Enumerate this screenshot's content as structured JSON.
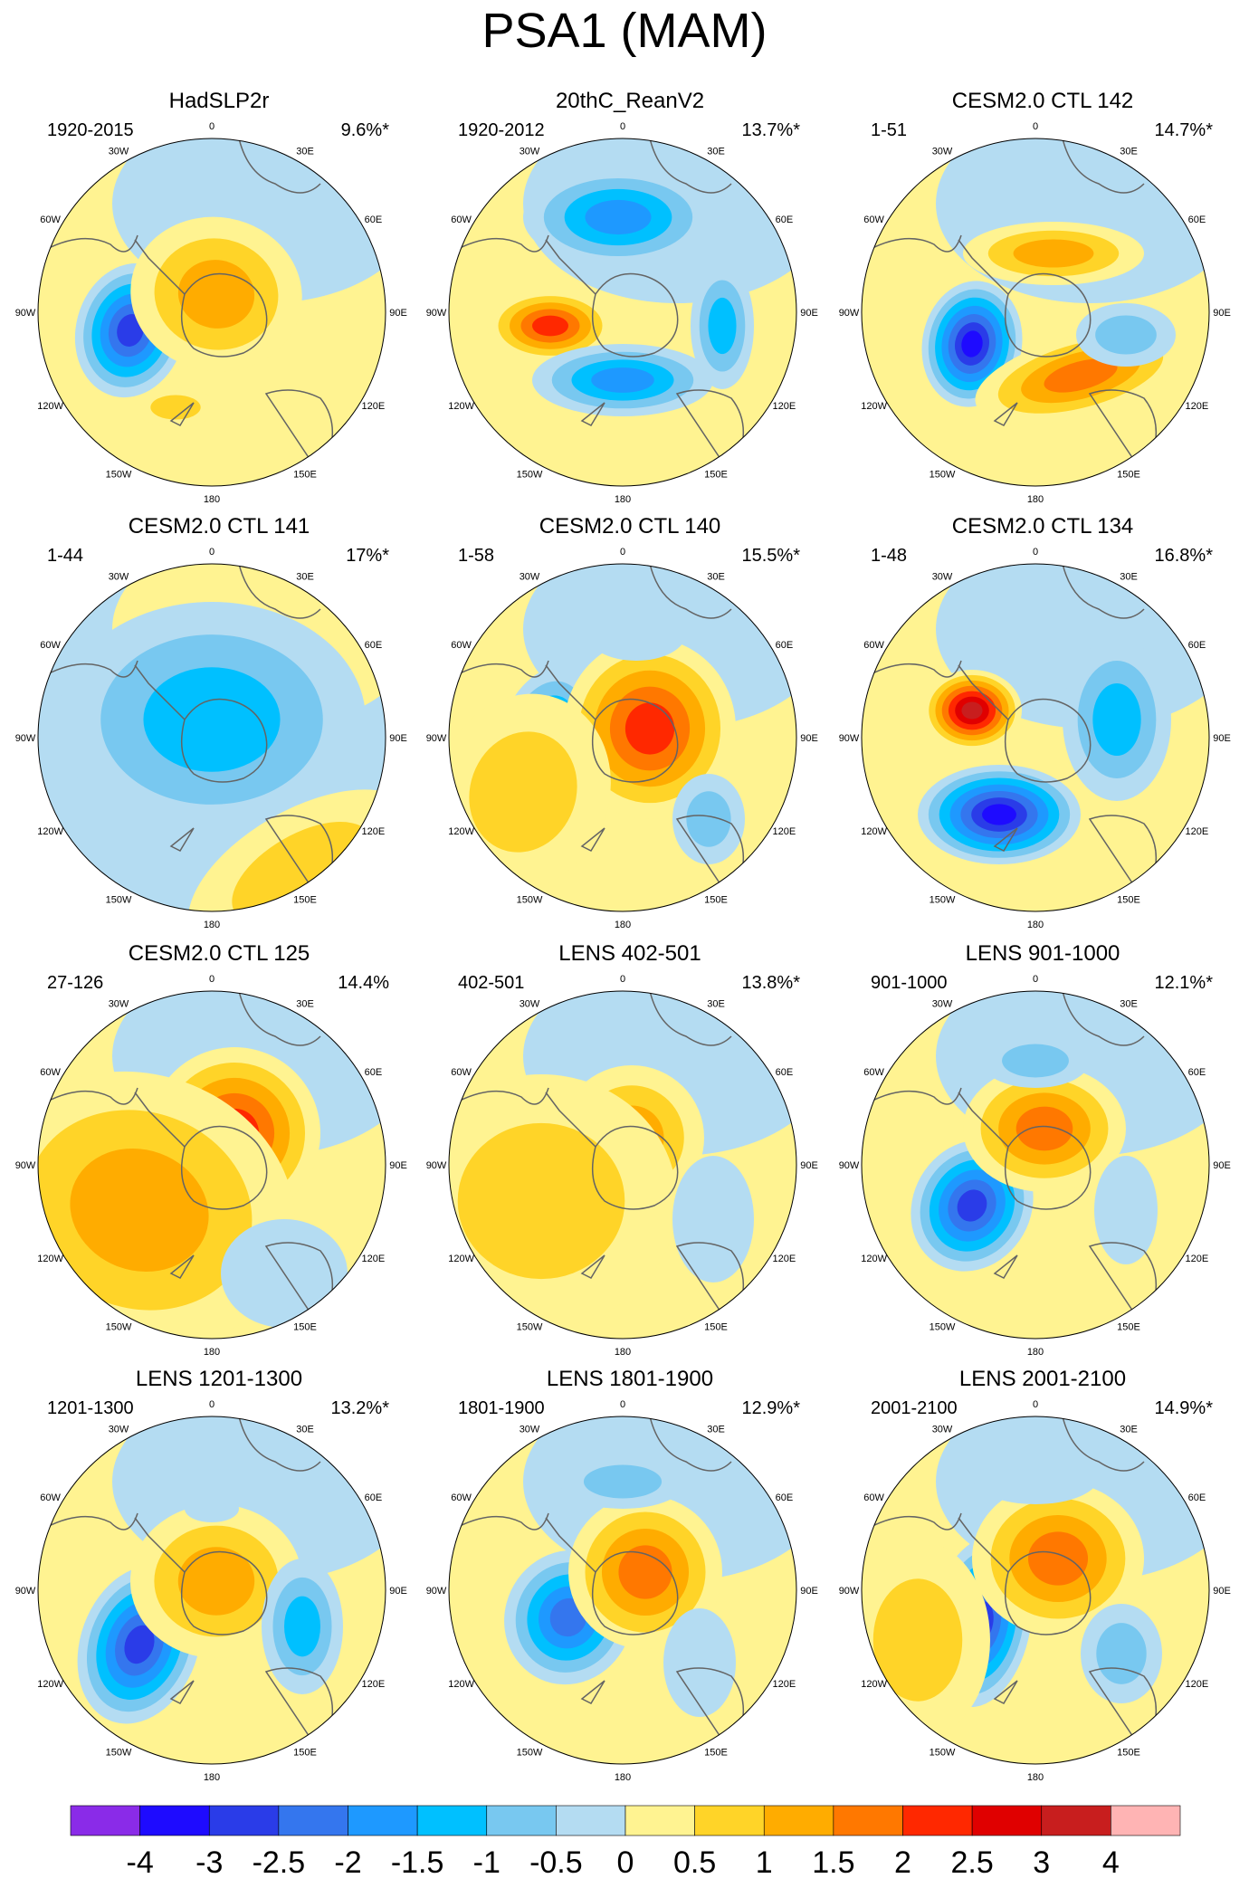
{
  "title": "PSA1 (MAM)",
  "colors": {
    "levels": [
      "#8a2be8",
      "#1e0bff",
      "#2a3ce8",
      "#3476ee",
      "#1e99ff",
      "#00c0ff",
      "#78c8f0",
      "#b4dcf2",
      "#fff391",
      "#ffd428",
      "#ffac00",
      "#ff7800",
      "#ff2800",
      "#e00000",
      "#c81e1e",
      "#ffb4b4"
    ],
    "coast": "#646464"
  },
  "colorbar": {
    "labels": [
      "-4",
      "-3",
      "-2.5",
      "-2",
      "-1.5",
      "-1",
      "-0.5",
      "0",
      "0.5",
      "1",
      "1.5",
      "2",
      "2.5",
      "3",
      "4"
    ]
  },
  "longitude_labels": [
    "0",
    "30E",
    "60E",
    "90E",
    "120E",
    "150E",
    "180",
    "150W",
    "120W",
    "90W",
    "60W",
    "30W"
  ],
  "panels": [
    {
      "title": "HadSLP2r",
      "period": "1920-2015",
      "variance": "9.6%*"
    },
    {
      "title": "20thC_ReanV2",
      "period": "1920-2012",
      "variance": "13.7%*"
    },
    {
      "title": "CESM2.0 CTL 142",
      "period": "1-51",
      "variance": "14.7%*"
    },
    {
      "title": "CESM2.0 CTL 141",
      "period": "1-44",
      "variance": "17%*"
    },
    {
      "title": "CESM2.0 CTL 140",
      "period": "1-58",
      "variance": "15.5%*"
    },
    {
      "title": "CESM2.0 CTL 134",
      "period": "1-48",
      "variance": "16.8%*"
    },
    {
      "title": "CESM2.0 CTL 125",
      "period": "27-126",
      "variance": "14.4%"
    },
    {
      "title": "LENS 402-501",
      "period": "402-501",
      "variance": "13.8%*"
    },
    {
      "title": "LENS 901-1000",
      "period": "901-1000",
      "variance": "12.1%*"
    },
    {
      "title": "LENS 1201-1300",
      "period": "1201-1300",
      "variance": "13.2%*"
    },
    {
      "title": "LENS 1801-1900",
      "period": "1801-1900",
      "variance": "12.9%*"
    },
    {
      "title": "LENS 2001-2100",
      "period": "2001-2100",
      "variance": "14.9%*"
    }
  ]
}
